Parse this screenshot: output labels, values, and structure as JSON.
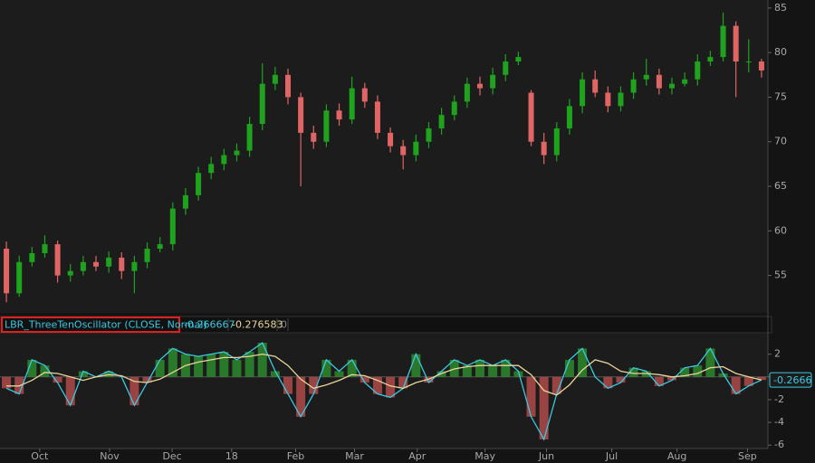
{
  "chart_data": [
    {
      "type": "candlestick",
      "x": [
        0,
        1,
        2,
        3,
        4,
        5,
        6,
        7,
        8,
        9,
        10,
        11,
        12,
        13,
        14,
        15,
        16,
        17,
        18,
        19,
        20,
        21,
        22,
        23,
        24,
        25,
        26,
        27,
        28,
        29,
        30,
        31,
        32,
        33,
        34,
        35,
        36,
        37,
        38,
        39,
        40,
        41,
        42,
        43,
        44,
        45,
        46,
        47,
        48,
        49,
        50,
        51,
        52,
        53,
        54,
        55,
        56,
        57,
        58,
        59
      ],
      "open": [
        58,
        53,
        56.5,
        57.5,
        58.5,
        55,
        55.5,
        56.5,
        56,
        57,
        55.5,
        56.5,
        58,
        58.5,
        62.5,
        64,
        66.5,
        67.5,
        68.5,
        69,
        72,
        76.5,
        77.5,
        75,
        71,
        70,
        73.5,
        72.5,
        76,
        74.5,
        71,
        69.5,
        68.5,
        70,
        71.5,
        73,
        74.5,
        76.5,
        76,
        77.5,
        79,
        75.5,
        70,
        68.5,
        71.5,
        74,
        77,
        75.5,
        74,
        75.5,
        77,
        77.5,
        76,
        76.5,
        77,
        79,
        79.5,
        83,
        79,
        79
      ],
      "high": [
        58.8,
        57.2,
        58.2,
        59.5,
        58.9,
        56.3,
        57.2,
        57.2,
        57.7,
        57.6,
        57.2,
        58.7,
        59.3,
        63.2,
        64.8,
        67.2,
        68.3,
        69.2,
        69.8,
        72.8,
        78.8,
        78.4,
        78.2,
        75.5,
        71.8,
        74.2,
        74.3,
        77.3,
        76.6,
        75.2,
        71.6,
        70.2,
        70.8,
        72.2,
        73.8,
        75.2,
        77.2,
        77.3,
        78.3,
        79.8,
        80.1,
        75.8,
        71,
        72.2,
        74.8,
        77.8,
        78,
        76.2,
        76.2,
        77.8,
        79.3,
        78.2,
        77.2,
        77.8,
        79.8,
        80.2,
        84.5,
        83.5,
        81.5,
        79.3
      ],
      "low": [
        52,
        52.6,
        56,
        57,
        54.2,
        54.3,
        55,
        55.5,
        55.3,
        54.6,
        53,
        55.8,
        57.6,
        57.8,
        61.8,
        63.4,
        65.8,
        66.8,
        67.8,
        68.3,
        71.3,
        75.8,
        74.2,
        65,
        69.2,
        69.4,
        71.8,
        72,
        73.8,
        70.3,
        68.8,
        66.9,
        67.8,
        69.3,
        70.8,
        72.4,
        73.8,
        75.2,
        75.3,
        76.8,
        78.6,
        69.5,
        67.5,
        67.8,
        70.8,
        73.2,
        75,
        73.3,
        73.4,
        74.8,
        76.3,
        75.3,
        75.3,
        76.2,
        76.3,
        78.5,
        79,
        75,
        77.8,
        77.2
      ],
      "close": [
        53,
        56.5,
        57.5,
        58.5,
        55,
        55.5,
        56.5,
        56,
        57,
        55.5,
        56.5,
        58,
        58.5,
        62.5,
        64,
        66.5,
        67.5,
        68.5,
        69,
        72,
        76.5,
        77.5,
        75,
        71,
        70,
        73.5,
        72.5,
        76,
        74.5,
        71,
        69.5,
        68.5,
        70,
        71.5,
        73,
        74.5,
        76.5,
        76,
        77.5,
        79,
        79.5,
        70,
        68.5,
        71.5,
        74,
        77,
        75.5,
        74,
        75.5,
        77,
        77.5,
        76,
        76.5,
        77,
        79,
        79.5,
        83,
        79,
        79,
        78
      ],
      "up_color": "#1fa31f",
      "down_color": "#e06565",
      "xlim": [
        -0.5,
        59.5
      ],
      "xticks": [
        {
          "value": 2.6,
          "label": "Oct"
        },
        {
          "value": 8.06,
          "label": "Nov"
        },
        {
          "value": 12.95,
          "label": "Dec"
        },
        {
          "value": 17.6,
          "label": "18"
        },
        {
          "value": 22.6,
          "label": "Feb"
        },
        {
          "value": 27.2,
          "label": "Mar"
        },
        {
          "value": 32.1,
          "label": "Apr"
        },
        {
          "value": 37.4,
          "label": "May"
        },
        {
          "value": 42.2,
          "label": "Jun"
        },
        {
          "value": 47.3,
          "label": "Jul"
        },
        {
          "value": 52.4,
          "label": "Aug"
        },
        {
          "value": 57.9,
          "label": "Sep"
        }
      ],
      "ylim": [
        50.8,
        85.9
      ],
      "yticks": [
        55,
        60,
        65,
        70,
        75,
        80,
        85
      ]
    },
    {
      "type": "oscillator",
      "title": "LBR_ThreeTenOscillator (CLOSE, Normal)",
      "header_values": [
        "-0.266667",
        "-0.276583",
        "0"
      ],
      "last_label": "-0.2666",
      "series": [
        {
          "color": "#3cc8e0",
          "up_color": "#2d8a2d",
          "down_color": "#b04a4a",
          "values": [
            -1,
            -1.5,
            1.5,
            1,
            -0.5,
            -2.5,
            0.5,
            0,
            0.5,
            0,
            -2.5,
            -0.5,
            1.5,
            2.5,
            2,
            1.8,
            2,
            2.2,
            1.5,
            2.2,
            3,
            0.5,
            -1.5,
            -3.5,
            -1.5,
            1.5,
            0.5,
            1.5,
            -0.5,
            -1.5,
            -1.8,
            -1,
            2,
            -0.5,
            0.5,
            1.5,
            1,
            1.5,
            1,
            1.5,
            0.5,
            -3.5,
            -5.5,
            -1.5,
            1.5,
            2.5,
            0,
            -1,
            -0.5,
            0.8,
            0.5,
            -0.8,
            -0.3,
            0.8,
            1,
            2.5,
            0.3,
            -1.5,
            -0.8,
            -0.27
          ]
        },
        {
          "color": "#e8d59a",
          "values": [
            -0.8,
            -0.8,
            -0.3,
            0.4,
            0.3,
            0,
            -0.3,
            0,
            0.2,
            0.1,
            -0.4,
            -0.5,
            -0.2,
            0.4,
            1,
            1.3,
            1.5,
            1.7,
            1.7,
            1.8,
            2,
            1.8,
            1,
            -0.2,
            -1,
            -0.7,
            -0.3,
            0.2,
            0.1,
            -0.3,
            -0.8,
            -1,
            -0.5,
            -0.2,
            0.3,
            0.7,
            0.9,
            1,
            1,
            1,
            1,
            0.2,
            -1.2,
            -1.6,
            -0.7,
            0.6,
            1.5,
            1.2,
            0.5,
            0.3,
            0.3,
            0.2,
            0,
            0.1,
            0.3,
            0.8,
            0.9,
            0.3,
            0,
            -0.28
          ]
        }
      ],
      "ylim": [
        -6.3,
        3.8
      ],
      "yticks": [
        2,
        0,
        -2,
        -4,
        -6
      ]
    }
  ]
}
